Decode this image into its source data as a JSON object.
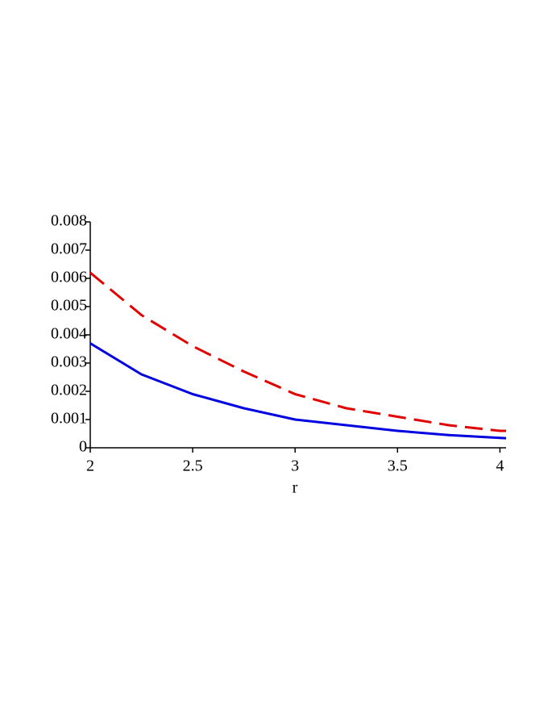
{
  "chart_data": {
    "type": "line",
    "x_label": "r",
    "x": [
      2,
      2.25,
      2.5,
      2.75,
      3,
      3.25,
      3.5,
      3.75,
      4,
      4.03
    ],
    "series": [
      {
        "color": "#e00000",
        "dash": true,
        "values": [
          0.0062,
          0.0047,
          0.0036,
          0.0027,
          0.0019,
          0.0014,
          0.0011,
          0.0008,
          0.0006,
          0.0006
        ]
      },
      {
        "color": "#0000e0",
        "dash": false,
        "values": [
          0.0037,
          0.0026,
          0.0019,
          0.0014,
          0.001,
          0.0008,
          0.0006,
          0.00045,
          0.00035,
          0.00034
        ]
      }
    ],
    "xlim": [
      2,
      4.03
    ],
    "ylim": [
      0,
      0.008
    ],
    "xticks": [
      2,
      2.5,
      3,
      3.5,
      4
    ],
    "yticks": [
      0,
      0.001,
      0.002,
      0.003,
      0.004,
      0.005,
      0.006,
      0.007,
      0.008
    ]
  }
}
